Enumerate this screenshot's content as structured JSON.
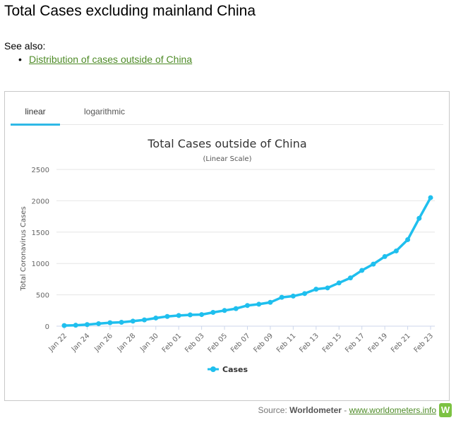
{
  "page": {
    "title": "Total Cases excluding mainland China",
    "see_also_label": "See also:",
    "see_also_links": [
      "Distribution of cases outside of China"
    ]
  },
  "tabs": [
    "linear",
    "logarithmic"
  ],
  "active_tab": "linear",
  "colors": {
    "series": "#1fbfee",
    "tab_active": "#2fb9e6",
    "link": "#4e8b27",
    "logo": "#7cc242"
  },
  "source": {
    "label": "Source:",
    "name": "Worldometer",
    "separator": "-",
    "url_text": "www.worldometers.info",
    "logo_letter": "W"
  },
  "chart_data": {
    "type": "line",
    "title": "Total Cases outside of China",
    "subtitle": "(Linear Scale)",
    "xlabel": "",
    "ylabel": "Total Coronavirus Cases",
    "ylim": [
      0,
      2500
    ],
    "yticks": [
      0,
      500,
      1000,
      1500,
      2000,
      2500
    ],
    "xticks": [
      "Jan 22",
      "Jan 24",
      "Jan 26",
      "Jan 28",
      "Jan 30",
      "Feb 01",
      "Feb 03",
      "Feb 05",
      "Feb 07",
      "Feb 09",
      "Feb 11",
      "Feb 13",
      "Feb 15",
      "Feb 17",
      "Feb 19",
      "Feb 21",
      "Feb 23"
    ],
    "x": [
      "Jan 22",
      "Jan 23",
      "Jan 24",
      "Jan 25",
      "Jan 26",
      "Jan 27",
      "Jan 28",
      "Jan 29",
      "Jan 30",
      "Jan 31",
      "Feb 01",
      "Feb 02",
      "Feb 03",
      "Feb 04",
      "Feb 05",
      "Feb 06",
      "Feb 07",
      "Feb 08",
      "Feb 09",
      "Feb 10",
      "Feb 11",
      "Feb 12",
      "Feb 13",
      "Feb 14",
      "Feb 15",
      "Feb 16",
      "Feb 17",
      "Feb 18",
      "Feb 19",
      "Feb 20",
      "Feb 21",
      "Feb 22",
      "Feb 23"
    ],
    "grid": true,
    "legend_position": "bottom-center",
    "series": [
      {
        "name": "Cases",
        "values": [
          10,
          15,
          25,
          40,
          55,
          62,
          80,
          100,
          130,
          155,
          170,
          180,
          185,
          220,
          250,
          280,
          330,
          350,
          380,
          460,
          480,
          520,
          590,
          610,
          690,
          770,
          890,
          990,
          1110,
          1200,
          1380,
          1720,
          2050
        ]
      }
    ]
  }
}
